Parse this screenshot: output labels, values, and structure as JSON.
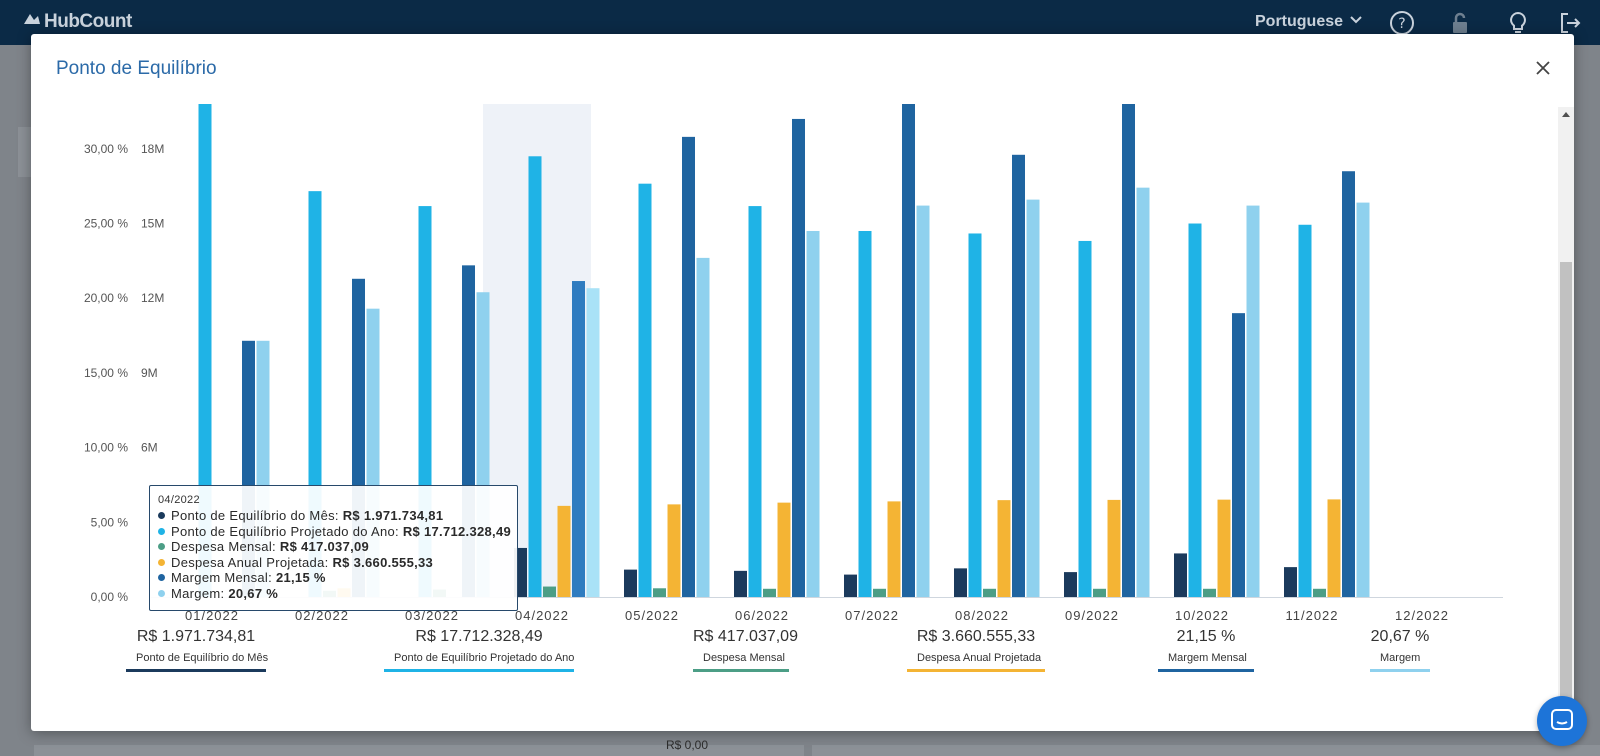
{
  "app": {
    "logo_text": "HubCount",
    "language": "Portuguese"
  },
  "background": {
    "value_text": "R$ 0,00"
  },
  "modal": {
    "title": "Ponto de Equilíbrio"
  },
  "colors": {
    "ponto_mes": "#1b3a5c",
    "ponto_ano": "#1fb3e6",
    "despesa_mensal": "#4c9e86",
    "despesa_anual": "#f4b434",
    "margem_mensal": "#1f64a0",
    "margem": "#8fd1ee"
  },
  "chart_data": {
    "type": "bar",
    "categories": [
      "01/2022",
      "02/2022",
      "03/2022",
      "04/2022",
      "05/2022",
      "06/2022",
      "07/2022",
      "08/2022",
      "09/2022",
      "10/2022",
      "11/2022",
      "12/2022"
    ],
    "left_axis": {
      "ticks": [
        "0,00 %",
        "5,00 %",
        "10,00 %",
        "15,00 %",
        "20,00 %",
        "25,00 %",
        "30,00 %"
      ],
      "range": [
        0,
        33
      ]
    },
    "right_axis": {
      "ticks": [
        "6M",
        "9M",
        "12M",
        "15M",
        "18M"
      ],
      "range": [
        0,
        19.8
      ]
    },
    "highlight_category": "04/2022",
    "series": [
      {
        "name": "Ponto de Equilíbrio do Mês",
        "axis": "money_millions",
        "values": [
          null,
          null,
          null,
          1.97,
          1.1,
          1.05,
          0.9,
          1.15,
          1.0,
          1.75,
          1.2,
          null
        ]
      },
      {
        "name": "Ponto de Equilíbrio Projetado do Ano",
        "axis": "money_millions",
        "values": [
          19.8,
          16.3,
          15.7,
          17.7,
          16.6,
          15.7,
          14.7,
          14.6,
          14.3,
          15.0,
          14.95,
          null
        ]
      },
      {
        "name": "Despesa Mensal",
        "axis": "money_millions",
        "values": [
          null,
          0.25,
          0.3,
          0.42,
          0.35,
          0.33,
          0.33,
          0.33,
          0.33,
          0.33,
          0.33,
          null
        ]
      },
      {
        "name": "Despesa Anual Projetada",
        "axis": "money_millions",
        "values": [
          null,
          0.35,
          null,
          3.66,
          3.72,
          3.79,
          3.84,
          3.89,
          3.9,
          3.91,
          3.92,
          null
        ]
      },
      {
        "name": "Margem Mensal",
        "axis": "percent",
        "values": [
          17.15,
          21.3,
          22.2,
          21.15,
          30.8,
          32.0,
          33.0,
          29.6,
          33.0,
          19.0,
          28.5,
          null
        ]
      },
      {
        "name": "Margem",
        "axis": "percent",
        "values": [
          17.15,
          19.3,
          20.4,
          20.67,
          22.7,
          24.5,
          26.2,
          26.6,
          27.4,
          26.2,
          26.4,
          null
        ]
      }
    ]
  },
  "tooltip": {
    "date": "04/2022",
    "rows": [
      {
        "label": "Ponto de Equilíbrio do Mês:",
        "value": "R$ 1.971.734,81"
      },
      {
        "label": "Ponto de Equilíbrio Projetado do Ano:",
        "value": "R$ 17.712.328,49"
      },
      {
        "label": "Despesa Mensal:",
        "value": "R$ 417.037,09"
      },
      {
        "label": "Despesa Anual Projetada:",
        "value": "R$ 3.660.555,33"
      },
      {
        "label": "Margem Mensal:",
        "value": "21,15 %"
      },
      {
        "label": "Margem:",
        "value": "20,67 %"
      }
    ]
  },
  "summary": [
    {
      "value": "R$ 1.971.734,81",
      "label": "Ponto de Equilíbrio do Mês"
    },
    {
      "value": "R$ 17.712.328,49",
      "label": "Ponto de Equilíbrio Projetado do Ano"
    },
    {
      "value": "R$ 417.037,09",
      "label": "Despesa Mensal"
    },
    {
      "value": "R$ 3.660.555,33",
      "label": "Despesa Anual Projetada"
    },
    {
      "value": "21,15 %",
      "label": "Margem Mensal"
    },
    {
      "value": "20,67 %",
      "label": "Margem"
    }
  ]
}
